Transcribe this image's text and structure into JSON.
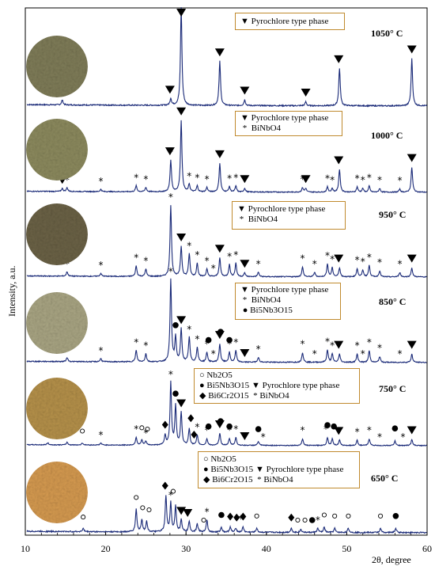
{
  "chart_data": {
    "type": "line",
    "xlabel": "2θ, degree",
    "ylabel": "Intensity, a.u.",
    "xlim": [
      10,
      60
    ],
    "x_ticks": [
      "10",
      "20",
      "30",
      "40",
      "50",
      "60"
    ],
    "grid": false,
    "series": [
      {
        "name": "1050° C",
        "legend": [
          {
            "marker": "triangle-down",
            "label": "Pyrochlore type phase"
          }
        ],
        "peaks": [
          [
            14.6,
            0.05
          ],
          [
            28.1,
            0.07
          ],
          [
            29.4,
            1.0
          ],
          [
            34.2,
            0.45
          ],
          [
            37.3,
            0.06
          ],
          [
            44.9,
            0.04
          ],
          [
            49.1,
            0.38
          ],
          [
            58.1,
            0.48
          ]
        ],
        "markers": [
          {
            "type": "triangle-down",
            "x": [
              14.6,
              28.0,
              29.4,
              34.2,
              37.3,
              44.9,
              49.0,
              58.1
            ]
          }
        ]
      },
      {
        "name": "1000° C",
        "legend": [
          {
            "marker": "triangle-down",
            "label": "Pyrochlore type phase"
          },
          {
            "marker": "star",
            "label": "BiNbO4"
          }
        ],
        "peaks": [
          [
            14.6,
            0.04
          ],
          [
            15.2,
            0.05
          ],
          [
            19.4,
            0.03
          ],
          [
            23.8,
            0.08
          ],
          [
            25.0,
            0.06
          ],
          [
            28.1,
            0.42
          ],
          [
            29.4,
            0.95
          ],
          [
            30.4,
            0.1
          ],
          [
            31.4,
            0.08
          ],
          [
            32.6,
            0.06
          ],
          [
            34.2,
            0.38
          ],
          [
            35.4,
            0.07
          ],
          [
            36.2,
            0.08
          ],
          [
            37.3,
            0.05
          ],
          [
            44.5,
            0.06
          ],
          [
            44.9,
            0.05
          ],
          [
            47.6,
            0.07
          ],
          [
            48.2,
            0.05
          ],
          [
            49.1,
            0.3
          ],
          [
            51.3,
            0.07
          ],
          [
            52.0,
            0.05
          ],
          [
            52.8,
            0.08
          ],
          [
            54.1,
            0.05
          ],
          [
            56.6,
            0.04
          ],
          [
            58.1,
            0.33
          ]
        ],
        "markers": [
          {
            "type": "triangle-down",
            "x": [
              14.6,
              28.0,
              29.4,
              34.2,
              37.3,
              44.9,
              49.0,
              58.1
            ]
          },
          {
            "type": "star",
            "x": [
              15.2,
              19.4,
              23.8,
              25.0,
              28.1,
              30.4,
              31.4,
              32.6,
              35.4,
              36.2,
              44.5,
              47.6,
              48.2,
              51.3,
              52.0,
              52.8,
              54.1,
              56.6
            ]
          }
        ]
      },
      {
        "name": "950° C",
        "legend": [
          {
            "marker": "triangle-down",
            "label": "Pyrochlore type phase"
          },
          {
            "marker": "star",
            "label": "BiNbO4"
          }
        ],
        "peaks": [
          [
            15.2,
            0.06
          ],
          [
            19.4,
            0.04
          ],
          [
            23.8,
            0.14
          ],
          [
            25.0,
            0.1
          ],
          [
            28.1,
            0.95
          ],
          [
            29.4,
            0.4
          ],
          [
            30.4,
            0.3
          ],
          [
            31.4,
            0.18
          ],
          [
            32.6,
            0.1
          ],
          [
            34.2,
            0.25
          ],
          [
            35.4,
            0.16
          ],
          [
            36.2,
            0.18
          ],
          [
            37.3,
            0.05
          ],
          [
            39.0,
            0.06
          ],
          [
            44.5,
            0.13
          ],
          [
            46.0,
            0.06
          ],
          [
            47.6,
            0.17
          ],
          [
            48.2,
            0.12
          ],
          [
            49.1,
            0.12
          ],
          [
            51.3,
            0.11
          ],
          [
            52.0,
            0.09
          ],
          [
            52.8,
            0.15
          ],
          [
            54.1,
            0.08
          ],
          [
            56.6,
            0.06
          ],
          [
            58.1,
            0.12
          ]
        ],
        "markers": [
          {
            "type": "triangle-down",
            "x": [
              29.4,
              34.2,
              37.3,
              49.0,
              58.1
            ]
          },
          {
            "type": "star",
            "x": [
              15.2,
              19.4,
              23.8,
              25.0,
              28.1,
              30.4,
              31.4,
              32.6,
              33.4,
              35.4,
              36.2,
              39.0,
              44.5,
              46.0,
              47.6,
              48.2,
              51.3,
              52.0,
              52.8,
              54.1,
              56.6
            ]
          }
        ]
      },
      {
        "name": "850° C",
        "legend": [
          {
            "marker": "triangle-down",
            "label": "Pyrochlore type phase"
          },
          {
            "marker": "star",
            "label": "BiNbO4"
          },
          {
            "marker": "circle",
            "label": "Bi5Nb3O15"
          }
        ],
        "peaks": [
          [
            15.2,
            0.05
          ],
          [
            19.4,
            0.04
          ],
          [
            23.8,
            0.14
          ],
          [
            25.0,
            0.1
          ],
          [
            28.1,
            1.0
          ],
          [
            28.7,
            0.3
          ],
          [
            29.4,
            0.4
          ],
          [
            30.4,
            0.3
          ],
          [
            31.4,
            0.18
          ],
          [
            32.6,
            0.12
          ],
          [
            34.2,
            0.22
          ],
          [
            35.4,
            0.12
          ],
          [
            36.2,
            0.14
          ],
          [
            39.0,
            0.06
          ],
          [
            44.5,
            0.12
          ],
          [
            47.6,
            0.15
          ],
          [
            48.2,
            0.1
          ],
          [
            49.1,
            0.1
          ],
          [
            51.3,
            0.1
          ],
          [
            52.8,
            0.14
          ],
          [
            54.1,
            0.07
          ],
          [
            58.1,
            0.1
          ]
        ],
        "markers": [
          {
            "type": "triangle-down",
            "x": [
              29.4,
              34.2,
              37.3,
              49.0,
              58.1
            ]
          },
          {
            "type": "star",
            "x": [
              15.2,
              19.4,
              23.8,
              25.0,
              28.1,
              30.4,
              31.4,
              32.6,
              33.4,
              35.4,
              36.2,
              39.0,
              44.5,
              46.0,
              47.6,
              48.2,
              51.3,
              52.0,
              52.8,
              54.1,
              56.6
            ]
          },
          {
            "type": "circle",
            "x": [
              28.7,
              32.8,
              34.3,
              35.4
            ]
          }
        ]
      },
      {
        "name": "750° C",
        "legend": [
          {
            "marker": "circle-open",
            "label": "Nb2O5"
          },
          {
            "marker": "circle",
            "label": "Bi5Nb3O15"
          },
          {
            "marker": "diamond",
            "label": "Bi6Cr2O15"
          },
          {
            "marker": "triangle-down",
            "label": "Pyrochlore type phase"
          },
          {
            "marker": "star",
            "label": "BiNbO4"
          }
        ],
        "peaks": [
          [
            12.8,
            0.03
          ],
          [
            15.2,
            0.04
          ],
          [
            17.1,
            0.03
          ],
          [
            19.4,
            0.03
          ],
          [
            23.8,
            0.12
          ],
          [
            24.5,
            0.08
          ],
          [
            25.0,
            0.06
          ],
          [
            27.4,
            0.15
          ],
          [
            28.1,
            0.95
          ],
          [
            28.7,
            0.6
          ],
          [
            29.4,
            0.5
          ],
          [
            30.4,
            0.25
          ],
          [
            31.4,
            0.15
          ],
          [
            32.6,
            0.1
          ],
          [
            34.2,
            0.18
          ],
          [
            35.4,
            0.1
          ],
          [
            36.2,
            0.12
          ],
          [
            39.0,
            0.06
          ],
          [
            44.5,
            0.1
          ],
          [
            47.6,
            0.12
          ],
          [
            48.2,
            0.1
          ],
          [
            49.1,
            0.08
          ],
          [
            51.3,
            0.08
          ],
          [
            52.8,
            0.1
          ],
          [
            56.0,
            0.07
          ],
          [
            58.1,
            0.09
          ]
        ],
        "markers": [
          {
            "type": "circle-open",
            "x": [
              12.8,
              15.2,
              17.1,
              24.5,
              25.2
            ]
          },
          {
            "type": "circle",
            "x": [
              28.7,
              32.8,
              34.3,
              35.4,
              39.0,
              47.6,
              48.4,
              56.0
            ]
          },
          {
            "type": "diamond",
            "x": [
              27.4,
              30.6,
              31.0
            ]
          },
          {
            "type": "triangle-down",
            "x": [
              29.4,
              34.2,
              37.3,
              49.0,
              58.1
            ]
          },
          {
            "type": "star",
            "x": [
              15.2,
              19.4,
              23.8,
              25.0,
              28.1,
              31.4,
              32.6,
              35.4,
              36.2,
              39.6,
              44.5,
              47.4,
              51.3,
              52.8,
              54.1,
              57.0
            ]
          }
        ]
      },
      {
        "name": "650° C",
        "legend": [
          {
            "marker": "circle-open",
            "label": "Nb2O5"
          },
          {
            "marker": "circle",
            "label": "Bi5Nb3O15"
          },
          {
            "marker": "diamond",
            "label": "Bi6Cr2O15"
          },
          {
            "marker": "triangle-down",
            "label": "Pyrochlore type phase"
          },
          {
            "marker": "star",
            "label": "BiNbO4"
          }
        ],
        "peaks": [
          [
            17.2,
            0.03
          ],
          [
            23.8,
            0.22
          ],
          [
            24.5,
            0.12
          ],
          [
            25.1,
            0.1
          ],
          [
            27.5,
            0.35
          ],
          [
            28.1,
            0.28
          ],
          [
            28.7,
            0.25
          ],
          [
            29.4,
            0.12
          ],
          [
            30.4,
            0.1
          ],
          [
            31.4,
            0.08
          ],
          [
            32.6,
            0.12
          ],
          [
            34.4,
            0.05
          ],
          [
            35.5,
            0.05
          ],
          [
            36.2,
            0.04
          ],
          [
            37.1,
            0.05
          ],
          [
            38.8,
            0.04
          ],
          [
            43.1,
            0.04
          ],
          [
            44.3,
            0.03
          ],
          [
            46.4,
            0.04
          ],
          [
            47.2,
            0.05
          ],
          [
            48.5,
            0.04
          ],
          [
            50.2,
            0.04
          ],
          [
            54.2,
            0.04
          ],
          [
            56.1,
            0.04
          ]
        ],
        "markers": [
          {
            "type": "circle-open",
            "x": [
              17.2,
              23.8,
              24.6,
              25.4,
              28.4,
              32.2,
              38.8,
              43.9,
              44.8,
              47.2,
              48.5,
              50.2,
              54.2
            ]
          },
          {
            "type": "circle",
            "x": [
              34.4,
              45.7,
              56.1
            ]
          },
          {
            "type": "diamond",
            "x": [
              27.4,
              35.5,
              36.3,
              37.1,
              43.1
            ]
          },
          {
            "type": "triangle-down",
            "x": [
              29.4,
              30.2
            ]
          },
          {
            "type": "star",
            "x": [
              28.1,
              32.6,
              36.8,
              46.4
            ]
          }
        ]
      }
    ]
  }
}
